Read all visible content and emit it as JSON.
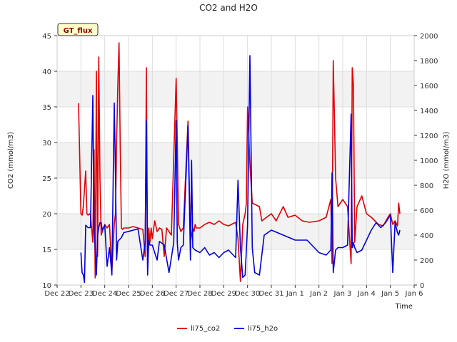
{
  "chart_data": {
    "type": "line",
    "title": "CO2 and H2O",
    "badge": "GT_flux",
    "xlabel": "Time",
    "ylabel_left": "CO2 (mmol/m3)",
    "ylabel_right": "H2O (mmol/m3)",
    "xlim": [
      0,
      15
    ],
    "ylim_left": [
      10,
      45
    ],
    "ylim_right": [
      0,
      2000
    ],
    "left_ticks": [
      10,
      15,
      20,
      25,
      30,
      35,
      40,
      45
    ],
    "right_ticks": [
      0,
      200,
      400,
      600,
      800,
      1000,
      1200,
      1400,
      1600,
      1800,
      2000
    ],
    "x_ticks": [
      {
        "pos": 0,
        "label": "Dec 22"
      },
      {
        "pos": 1,
        "label": "Dec 23"
      },
      {
        "pos": 2,
        "label": "Dec 24"
      },
      {
        "pos": 3,
        "label": "Dec 25"
      },
      {
        "pos": 4,
        "label": "Dec 26"
      },
      {
        "pos": 5,
        "label": "Dec 27"
      },
      {
        "pos": 6,
        "label": "Dec 28"
      },
      {
        "pos": 7,
        "label": "Dec 29"
      },
      {
        "pos": 8,
        "label": "Dec 30"
      },
      {
        "pos": 9,
        "label": "Dec 31"
      },
      {
        "pos": 10,
        "label": "Jan 1"
      },
      {
        "pos": 11,
        "label": "Jan 2"
      },
      {
        "pos": 12,
        "label": "Jan 3"
      },
      {
        "pos": 13,
        "label": "Jan 4"
      },
      {
        "pos": 14,
        "label": "Jan 5"
      },
      {
        "pos": 15,
        "label": "Jan 6"
      }
    ],
    "bands": [
      [
        15,
        20
      ],
      [
        25,
        30
      ],
      [
        35,
        40
      ]
    ],
    "series": [
      {
        "name": "li75_co2",
        "axis": "left",
        "color": "#e00000",
        "x": [
          0.9,
          1.0,
          1.05,
          1.1,
          1.2,
          1.25,
          1.3,
          1.35,
          1.4,
          1.5,
          1.55,
          1.6,
          1.65,
          1.7,
          1.75,
          1.8,
          1.85,
          1.9,
          1.95,
          2.0,
          2.1,
          2.2,
          2.3,
          2.4,
          2.45,
          2.5,
          2.55,
          2.6,
          2.65,
          2.7,
          2.75,
          2.8,
          3.0,
          3.2,
          3.4,
          3.6,
          3.7,
          3.75,
          3.8,
          3.85,
          3.9,
          3.95,
          4.0,
          4.1,
          4.2,
          4.3,
          4.4,
          4.5,
          4.6,
          4.8,
          5.0,
          5.05,
          5.1,
          5.15,
          5.2,
          5.3,
          5.5,
          5.6,
          5.7,
          5.75,
          5.8,
          5.85,
          6.0,
          6.2,
          6.4,
          6.6,
          6.8,
          7.0,
          7.2,
          7.5,
          7.6,
          7.7,
          7.8,
          7.9,
          7.95,
          8.0,
          8.1,
          8.2,
          8.5,
          8.6,
          8.8,
          9.0,
          9.2,
          9.5,
          9.7,
          10.0,
          10.3,
          10.6,
          11.0,
          11.3,
          11.5,
          11.55,
          11.6,
          11.65,
          11.7,
          11.8,
          12.0,
          12.2,
          12.35,
          12.4,
          12.45,
          12.5,
          12.6,
          12.8,
          13.0,
          13.2,
          13.5,
          13.7,
          13.9,
          14.0,
          14.1,
          14.2,
          14.3,
          14.35,
          14.4
        ],
        "values": [
          35.5,
          20.0,
          19.8,
          21.0,
          26.0,
          20.0,
          19.8,
          20.0,
          19.8,
          16.0,
          29.0,
          11.0,
          40.0,
          14.0,
          42.0,
          25.0,
          17.0,
          17.5,
          18.0,
          18.5,
          18.0,
          18.5,
          12.0,
          18.5,
          20.0,
          30.0,
          38.0,
          44.0,
          30.0,
          18.0,
          17.8,
          18.0,
          18.0,
          18.2,
          18.0,
          17.8,
          14.0,
          40.5,
          12.5,
          18.0,
          16.0,
          18.0,
          16.5,
          19.0,
          17.5,
          18.0,
          17.8,
          14.0,
          18.0,
          17.0,
          39.0,
          30.0,
          18.5,
          18.0,
          17.5,
          18.0,
          33.0,
          16.0,
          18.0,
          17.5,
          18.5,
          18.0,
          18.0,
          18.5,
          18.8,
          18.5,
          19.0,
          18.5,
          18.3,
          18.8,
          16.5,
          10.5,
          18.5,
          20.0,
          21.5,
          35.0,
          27.0,
          21.5,
          21.0,
          19.0,
          19.5,
          20.0,
          19.0,
          21.0,
          19.5,
          19.8,
          19.0,
          18.8,
          19.0,
          19.5,
          22.0,
          13.0,
          41.5,
          34.0,
          25.0,
          21.0,
          22.0,
          21.0,
          13.0,
          40.5,
          38.0,
          16.0,
          21.0,
          22.5,
          20.0,
          19.5,
          18.5,
          18.3,
          19.5,
          20.0,
          18.5,
          19.0,
          18.3,
          21.5,
          20.0
        ]
      },
      {
        "name": "li75_h2o",
        "axis": "right",
        "color": "#0000dd",
        "x": [
          1.0,
          1.05,
          1.1,
          1.15,
          1.2,
          1.3,
          1.4,
          1.5,
          1.55,
          1.6,
          1.65,
          1.7,
          1.75,
          1.8,
          1.85,
          1.9,
          2.0,
          2.1,
          2.2,
          2.3,
          2.4,
          2.45,
          2.5,
          2.55,
          2.6,
          2.7,
          2.8,
          3.0,
          3.2,
          3.4,
          3.6,
          3.7,
          3.75,
          3.8,
          3.85,
          3.9,
          4.0,
          4.2,
          4.3,
          4.5,
          4.7,
          4.9,
          5.0,
          5.05,
          5.1,
          5.2,
          5.3,
          5.5,
          5.6,
          5.65,
          5.7,
          5.8,
          6.0,
          6.2,
          6.4,
          6.6,
          6.8,
          7.0,
          7.2,
          7.5,
          7.6,
          7.7,
          7.8,
          7.9,
          8.0,
          8.1,
          8.2,
          8.3,
          8.5,
          8.7,
          9.0,
          9.5,
          10.0,
          10.5,
          11.0,
          11.3,
          11.5,
          11.55,
          11.6,
          11.7,
          11.8,
          12.0,
          12.2,
          12.35,
          12.4,
          12.45,
          12.5,
          12.6,
          12.8,
          13.0,
          13.2,
          13.4,
          13.6,
          13.8,
          14.0,
          14.1,
          14.2,
          14.3,
          14.35,
          14.4
        ],
        "values": [
          260,
          100,
          80,
          20,
          480,
          460,
          460,
          1520,
          450,
          300,
          80,
          400,
          460,
          500,
          500,
          440,
          480,
          150,
          300,
          80,
          1460,
          900,
          200,
          350,
          360,
          380,
          420,
          430,
          440,
          450,
          200,
          340,
          1320,
          80,
          360,
          320,
          320,
          200,
          350,
          320,
          100,
          340,
          1320,
          340,
          200,
          300,
          320,
          1280,
          200,
          1000,
          300,
          280,
          260,
          300,
          240,
          260,
          220,
          260,
          280,
          220,
          840,
          300,
          60,
          80,
          480,
          1840,
          300,
          100,
          80,
          400,
          440,
          400,
          360,
          360,
          260,
          240,
          280,
          900,
          100,
          280,
          300,
          300,
          320,
          1370,
          300,
          340,
          300,
          260,
          280,
          360,
          440,
          500,
          460,
          500,
          560,
          100,
          500,
          420,
          400,
          440
        ]
      }
    ],
    "legend": {
      "position": "bottom-center"
    }
  }
}
